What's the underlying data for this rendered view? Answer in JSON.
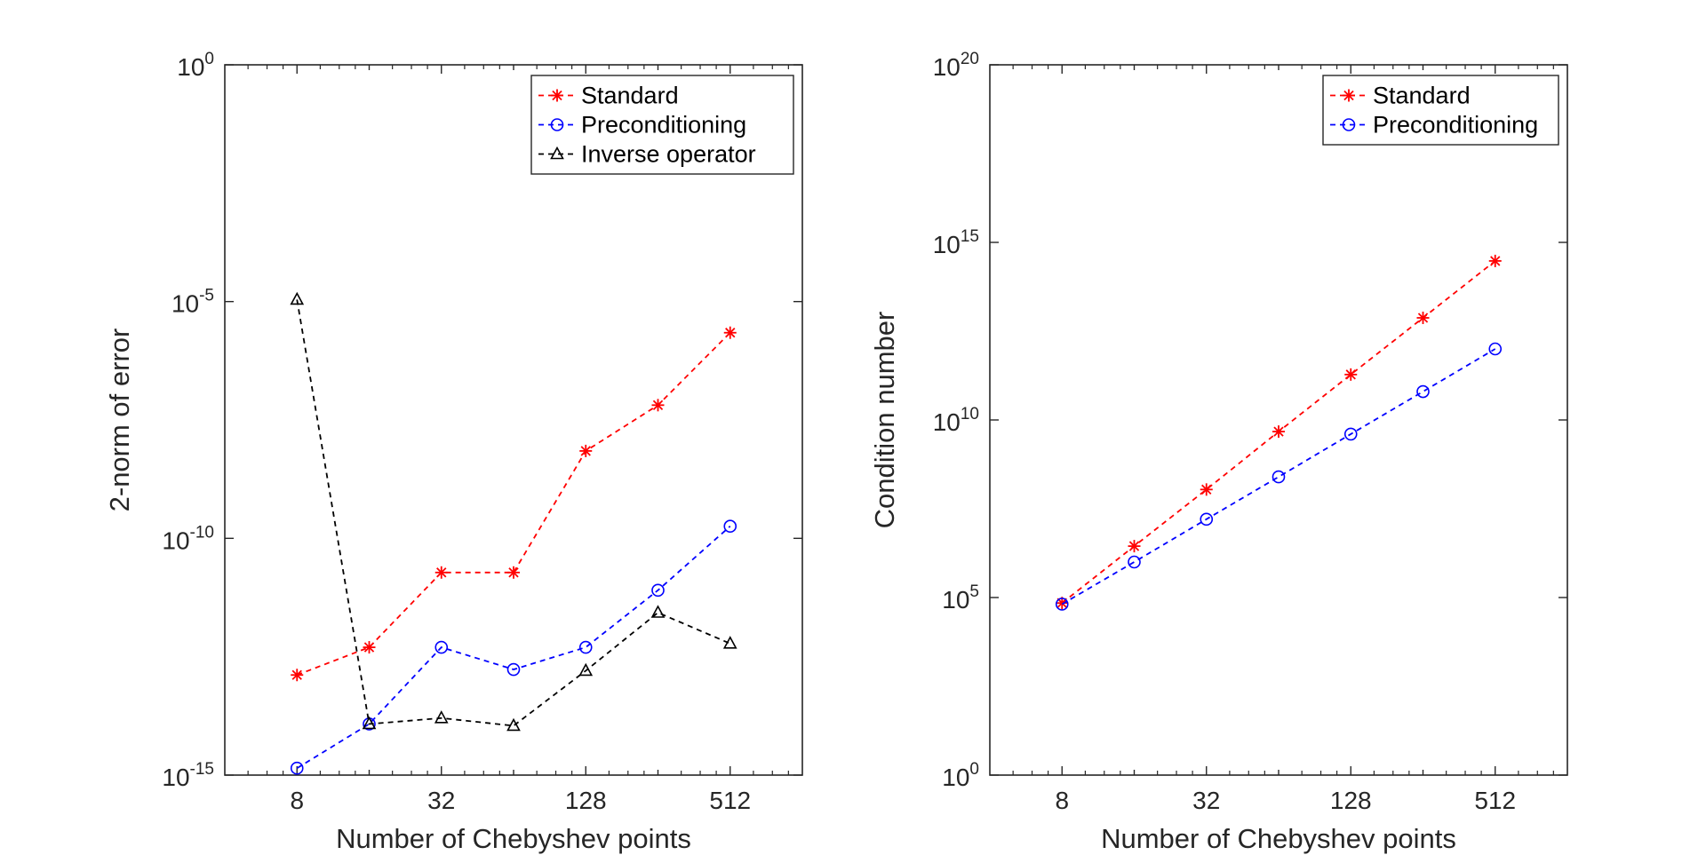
{
  "chart_data": [
    {
      "type": "line",
      "xscale": "log2",
      "yscale": "log10",
      "x": [
        8,
        16,
        32,
        64,
        128,
        256,
        512
      ],
      "xlim": [
        4,
        1024
      ],
      "ylim": [
        1e-15,
        1
      ],
      "xticks": [
        8,
        32,
        128,
        512
      ],
      "xtick_labels": [
        "8",
        "32",
        "128",
        "512"
      ],
      "yticks": [
        {
          "value": 1,
          "base": "10",
          "exp": "0"
        },
        {
          "value": 1e-05,
          "base": "10",
          "exp": "-5"
        },
        {
          "value": 1e-10,
          "base": "10",
          "exp": "-10"
        },
        {
          "value": 1e-15,
          "base": "10",
          "exp": "-15"
        }
      ],
      "xlabel": "Number of Chebyshev points",
      "ylabel": "2-norm of error",
      "legend_position": "top-right",
      "grid": false,
      "series": [
        {
          "name": "Standard",
          "color": "#ff0000",
          "marker": "asterisk",
          "values": [
            1.3e-13,
            5e-13,
            1.9e-11,
            1.9e-11,
            7e-09,
            6.5e-08,
            2.2e-06
          ]
        },
        {
          "name": "Preconditioning",
          "color": "#0000ff",
          "marker": "circle",
          "values": [
            1.4e-15,
            1.2e-14,
            5e-13,
            1.7e-13,
            5e-13,
            8e-12,
            1.8e-10
          ]
        },
        {
          "name": "Inverse operator",
          "color": "#000000",
          "marker": "triangle",
          "values": [
            1.1e-05,
            1.2e-14,
            1.6e-14,
            1.1e-14,
            1.6e-13,
            2.7e-12,
            6e-13
          ]
        }
      ]
    },
    {
      "type": "line",
      "xscale": "log2",
      "yscale": "log10",
      "x": [
        8,
        16,
        32,
        64,
        128,
        256,
        512
      ],
      "xlim": [
        4,
        1024
      ],
      "ylim": [
        1,
        1e+20
      ],
      "xticks": [
        8,
        32,
        128,
        512
      ],
      "xtick_labels": [
        "8",
        "32",
        "128",
        "512"
      ],
      "yticks": [
        {
          "value": 1,
          "base": "10",
          "exp": "0"
        },
        {
          "value": 100000.0,
          "base": "10",
          "exp": "5"
        },
        {
          "value": 10000000000.0,
          "base": "10",
          "exp": "10"
        },
        {
          "value": 1000000000000000.0,
          "base": "10",
          "exp": "15"
        },
        {
          "value": 1e+20,
          "base": "10",
          "exp": "20"
        }
      ],
      "xlabel": "Number of Chebyshev points",
      "ylabel": "Condition number",
      "legend_position": "top-right",
      "grid": false,
      "series": [
        {
          "name": "Standard",
          "color": "#ff0000",
          "marker": "asterisk",
          "values": [
            70000.0,
            2800000.0,
            110000000.0,
            4700000000.0,
            190000000000.0,
            7500000000000.0,
            300000000000000.0
          ]
        },
        {
          "name": "Preconditioning",
          "color": "#0000ff",
          "marker": "circle",
          "values": [
            65000.0,
            1000000.0,
            16000000.0,
            250000000.0,
            4000000000.0,
            63000000000.0,
            1000000000000.0
          ]
        }
      ]
    }
  ]
}
